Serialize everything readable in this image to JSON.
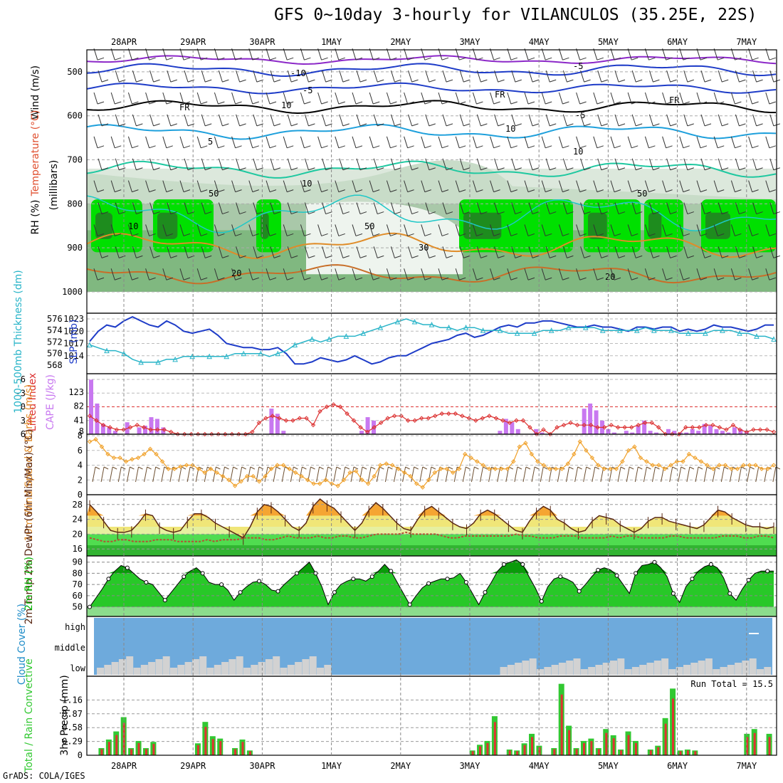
{
  "title": "GFS 0~10day 3-hourly for VILANCULOS (35.25E, 22S)",
  "footer": "GrADS: COLA/IGES",
  "colors": {
    "rh_dark": "#3c6e3c",
    "rh_green": "#00e000",
    "rh_light": "#c8dcc8",
    "slp": "#1e3cc8",
    "thickness": "#28b4c8",
    "lifted": "#dc3232",
    "cape": "#c878f0",
    "wind10": "#f0a028",
    "barbs": "#6e5032",
    "temp": "#5a2814",
    "dewpt": "#b45032",
    "rh2m": "#00c800",
    "cloud": "#6eaadc",
    "cloud_low": "#d2d2d2",
    "rain": "#32c832",
    "conv": "#e03232"
  },
  "chart_data": {
    "x_dates": [
      "28APR",
      "29APR",
      "30APR",
      "1MAY",
      "2MAY",
      "3MAY",
      "4MAY",
      "5MAY",
      "6MAY",
      "7MAY"
    ],
    "upper_panel": {
      "ylabel": "(millibars)",
      "legend": {
        "wind": "Wind (m/s)",
        "temp": "Temperature (°C)",
        "rh": "RH (%)"
      },
      "yticks": [
        "500",
        "600",
        "700",
        "800",
        "900",
        "1000"
      ],
      "contour_labels": [
        "-10",
        "-5",
        "-5",
        "-5",
        "FR",
        "FR",
        "FR",
        "5",
        "10",
        "10",
        "20",
        "20",
        "30",
        "50",
        "50",
        "50",
        "10",
        "10",
        "10"
      ]
    },
    "slp_panel": {
      "left_label": "1000-500mb Thickness (dm)",
      "right_label": "SLP (mb)",
      "thickness_ticks": [
        "568",
        "570",
        "572",
        "574",
        "576"
      ],
      "slp_ticks": [
        "1014",
        "1017",
        "1020",
        "1023"
      ],
      "slp": [
        1017.5,
        1020,
        1021.5,
        1021,
        1022.5,
        1023.5,
        1022.5,
        1021.5,
        1021,
        1022.5,
        1021.5,
        1020,
        1019.5,
        1020,
        1020.5,
        1019,
        1017,
        1016.5,
        1016,
        1016,
        1015.5,
        1015.5,
        1016,
        1014.5,
        1012,
        1012,
        1012.5,
        1013.5,
        1013,
        1012.5,
        1013,
        1014,
        1013,
        1012,
        1012.5,
        1013.5,
        1014,
        1014,
        1015,
        1016,
        1017,
        1017.5,
        1018,
        1019,
        1019.5,
        1018.5,
        1019,
        1020,
        1021,
        1021.5,
        1021,
        1022,
        1022,
        1022.5,
        1022.5,
        1022,
        1021.5,
        1021,
        1021,
        1021.5,
        1021,
        1021,
        1020.5,
        1020,
        1021,
        1021,
        1020.5,
        1021,
        1021,
        1020,
        1020.5,
        1020,
        1020.5,
        1021.5,
        1021,
        1021,
        1020.5,
        1020,
        1020.5,
        1021.5,
        1021.5
      ],
      "thickness": [
        571.5,
        571,
        570.5,
        570.5,
        570,
        569,
        568.5,
        568.5,
        568.5,
        569,
        569,
        569.5,
        569.5,
        569.5,
        569.5,
        569.5,
        569.5,
        570,
        570,
        570,
        570,
        569.5,
        570,
        570.5,
        571.5,
        572,
        572.5,
        572,
        572.5,
        573,
        573,
        573,
        573.5,
        574,
        574.5,
        575,
        575.5,
        576,
        575.5,
        575,
        575,
        574.5,
        574.5,
        574,
        574.5,
        574.5,
        574,
        574,
        574,
        573.5,
        573.5,
        573.5,
        573.5,
        574,
        574,
        574,
        574.5,
        574.5,
        574.5,
        574.5,
        574,
        574,
        574,
        574,
        574,
        574.5,
        574,
        574,
        574,
        573.5,
        573.5,
        573.5,
        573.5,
        574,
        574,
        574,
        573.5,
        573.5,
        573,
        573,
        572.5
      ]
    },
    "cape_panel": {
      "left_label": "Lifted Index",
      "right_label": "CAPE (J/kg)",
      "li_ticks": [
        "-6",
        "-3",
        "0",
        "3",
        "6"
      ],
      "cape_ticks": [
        "8",
        "41",
        "82",
        "123"
      ],
      "cape": [
        160,
        90,
        30,
        20,
        10,
        0,
        35,
        0,
        20,
        25,
        50,
        45,
        20,
        0,
        0,
        0,
        0,
        0,
        0,
        0,
        0,
        0,
        0,
        0,
        0,
        0,
        0,
        0,
        0,
        0,
        75,
        60,
        10,
        0,
        0,
        0,
        0,
        0,
        0,
        0,
        0,
        0,
        0,
        0,
        0,
        10,
        50,
        40,
        0,
        0,
        0,
        0,
        0,
        0,
        0,
        0,
        0,
        0,
        0,
        0,
        0,
        0,
        0,
        0,
        0,
        0,
        0,
        0,
        10,
        45,
        35,
        15,
        0,
        0,
        15,
        5,
        0,
        0,
        0,
        0,
        0,
        0,
        75,
        90,
        70,
        40,
        15,
        5,
        0,
        10,
        5,
        25,
        40,
        10,
        5,
        0,
        15,
        10,
        5,
        5,
        15,
        10,
        30,
        25,
        15,
        10,
        5,
        20,
        15,
        10,
        0,
        0,
        0,
        0
      ],
      "lifted_index": [
        2,
        3,
        4,
        4.5,
        5,
        5,
        4.5,
        4,
        4.5,
        5,
        5,
        5,
        5.5,
        6,
        6,
        6,
        6,
        6,
        6,
        6,
        6,
        6,
        6,
        6,
        5.5,
        3.5,
        2.5,
        2,
        2.5,
        3,
        3,
        2.5,
        2.5,
        4,
        1,
        0,
        -0.5,
        0,
        1.5,
        3,
        4.5,
        5.5,
        4.5,
        3.5,
        2.5,
        2,
        2,
        3,
        3,
        2.5,
        2.5,
        2,
        1.5,
        1.5,
        1.5,
        2,
        2.5,
        3,
        2.5,
        2,
        2.5,
        3,
        3.5,
        3,
        3,
        4.5,
        6,
        5,
        6,
        4.5,
        4,
        3.5,
        4,
        4,
        4,
        4.5,
        4.5,
        4,
        4.5,
        4.5,
        4.5,
        4,
        3.5,
        3.5,
        4.5,
        6,
        6,
        6,
        4.5,
        4.5,
        4.5,
        4,
        4,
        4.5,
        5,
        4,
        5,
        5.5,
        5,
        5,
        5,
        5.5
      ]
    },
    "wind10_panel": {
      "label": "10m Wind Speed & Barbs (m/s)",
      "yticks": [
        "0",
        "2",
        "4",
        "6",
        "8"
      ],
      "speed": [
        7.2,
        7.5,
        6.5,
        5.5,
        5,
        5,
        4.5,
        4.8,
        5,
        5.5,
        6.2,
        5.5,
        4.5,
        3.5,
        3.5,
        3.8,
        4,
        4,
        3.5,
        3,
        3.5,
        3,
        2.5,
        2,
        1.2,
        1.8,
        2.5,
        2.5,
        1.8,
        2.5,
        3.5,
        4,
        4,
        3.5,
        3,
        2.5,
        2,
        1.5,
        1.5,
        2,
        1.5,
        1.2,
        2,
        3,
        3.2,
        2,
        1.5,
        2.5,
        4,
        4.2,
        4,
        3.5,
        3,
        2.5,
        1.5,
        1,
        2,
        3,
        3.5,
        3.5,
        3,
        3.5,
        5.5,
        5,
        4.5,
        4,
        3.5,
        3.5,
        3.5,
        3.5,
        4.5,
        6.5,
        7,
        5.5,
        4.5,
        4,
        3.5,
        3.5,
        3.5,
        4.2,
        5.5,
        7.2,
        6,
        5,
        4,
        3.5,
        3.5,
        3.5,
        4.5,
        6,
        6.5,
        5,
        4.5,
        4,
        4,
        3.5,
        4,
        4.5,
        4.5,
        5.5,
        5,
        4.5,
        4,
        3.5,
        4,
        4,
        3.5,
        3.5,
        4,
        4,
        4,
        3.5,
        3.5,
        4
      ]
    },
    "temp_panel": {
      "label": "2m Temp 2m DewPt (6hr Min/Max) (°C)",
      "yticks": [
        "16",
        "20",
        "24",
        "28"
      ],
      "temp": [
        28,
        26,
        23.5,
        21,
        20.5,
        20.5,
        21,
        23,
        25.5,
        25,
        22,
        21,
        20.5,
        21,
        23.5,
        25.5,
        25.5,
        24.5,
        23,
        22,
        21,
        20,
        19,
        22,
        26,
        28,
        27.5,
        26,
        24,
        22,
        21,
        23,
        27.5,
        29.5,
        28,
        27,
        25,
        23,
        21,
        23,
        26.5,
        28.5,
        27,
        25,
        23,
        21.5,
        21,
        24,
        26.5,
        27.5,
        26,
        24.5,
        23,
        22,
        21.5,
        23,
        25.5,
        26.5,
        25.5,
        24,
        22.5,
        21,
        20.5,
        23.5,
        26,
        27.5,
        26.5,
        24,
        23,
        21.5,
        20.5,
        21,
        23.5,
        25,
        24.5,
        24,
        22.5,
        21.5,
        20.5,
        21.5,
        23.5,
        24.5,
        24.5,
        23.5,
        23,
        22.5,
        22,
        21.5,
        22.5,
        24.5,
        26.5,
        26,
        24.5,
        23.5,
        22.5,
        22,
        22,
        21.5,
        22
      ],
      "dewpt": [
        19,
        18.5,
        18,
        18,
        18.5,
        18.5,
        18,
        18,
        18,
        18.5,
        18.5,
        18.5,
        18,
        18,
        18,
        18,
        18.5,
        18,
        18.5,
        18.5,
        18.5,
        19,
        19,
        19,
        18.5,
        18.5,
        19,
        19.5,
        19,
        19,
        19,
        19.5,
        19,
        19,
        19.5,
        19.5,
        19,
        19,
        19.5,
        20,
        20,
        20,
        20,
        20.5,
        20,
        20,
        20,
        20,
        19.5,
        19,
        19,
        19.5,
        19.5,
        19.5,
        19.5,
        19.5,
        19.5,
        19.5,
        20,
        19.5,
        19.5,
        19,
        19,
        19,
        19.5,
        19.5,
        19.5,
        19,
        19,
        19,
        19,
        19.5,
        19,
        19.5,
        19.5,
        19,
        19,
        19,
        19,
        19.5,
        19.5,
        19,
        19,
        19,
        19,
        19,
        19.5,
        19.5,
        19.5,
        19,
        19,
        19.5,
        19.5,
        19
      ]
    },
    "rh_panel": {
      "label": "2m RH (%)",
      "yticks": [
        "50",
        "60",
        "70",
        "80",
        "90"
      ],
      "rh": [
        50,
        58,
        66,
        75,
        82,
        87,
        85,
        80,
        75,
        72,
        70,
        63,
        56,
        63,
        70,
        77,
        82,
        85,
        80,
        72,
        70,
        70,
        65,
        56,
        63,
        68,
        72,
        73,
        70,
        65,
        64,
        70,
        75,
        80,
        85,
        90,
        80,
        68,
        52,
        63,
        70,
        73,
        75,
        75,
        73,
        77,
        82,
        88,
        82,
        72,
        62,
        52,
        60,
        67,
        71,
        73,
        75,
        75,
        76,
        80,
        72,
        62,
        52,
        63,
        72,
        82,
        88,
        90,
        92,
        88,
        77,
        67,
        55,
        68,
        75,
        77,
        75,
        72,
        64,
        70,
        77,
        83,
        85,
        83,
        78,
        70,
        62,
        80,
        87,
        88,
        90,
        85,
        77,
        62,
        54,
        68,
        75,
        82,
        86,
        88,
        85,
        76,
        62,
        56,
        66,
        74,
        80,
        82,
        82,
        82
      ]
    },
    "cloud_panel": {
      "label": "Cloud Cover (%)",
      "levels": [
        "high",
        "middle",
        "low"
      ]
    },
    "precip_panel": {
      "left_label": "Total / Rain Convective",
      "ylabel": "3hr Precip (mm)",
      "yticks": [
        "0",
        "0.29",
        "0.58",
        "0.87",
        "1.16"
      ],
      "run_total": "Run Total = 15.5",
      "total": [
        0,
        0.15,
        0.33,
        0.5,
        0.8,
        0.15,
        0.3,
        0.15,
        0.28,
        0,
        0,
        0,
        0,
        0,
        0.25,
        0.7,
        0.4,
        0.35,
        0,
        0.15,
        0.33,
        0.1,
        0,
        0,
        0,
        0,
        0,
        0,
        0,
        0,
        0,
        0,
        0,
        0,
        0,
        0,
        0,
        0,
        0,
        0,
        0,
        0,
        0,
        0,
        0,
        0,
        0,
        0,
        0,
        0,
        0,
        0.1,
        0.22,
        0.3,
        0.82,
        0,
        0.12,
        0.1,
        0.25,
        0.45,
        0.2,
        0,
        0.15,
        1.5,
        0.62,
        0.15,
        0.3,
        0.35,
        0.15,
        0.55,
        0.42,
        0.12,
        0.5,
        0.3,
        0,
        0.12,
        0.2,
        0.78,
        1.4,
        0.1,
        0.12,
        0.1,
        0,
        0,
        0,
        0,
        0,
        0,
        0.45,
        0.55,
        0,
        0.45
      ]
    }
  }
}
